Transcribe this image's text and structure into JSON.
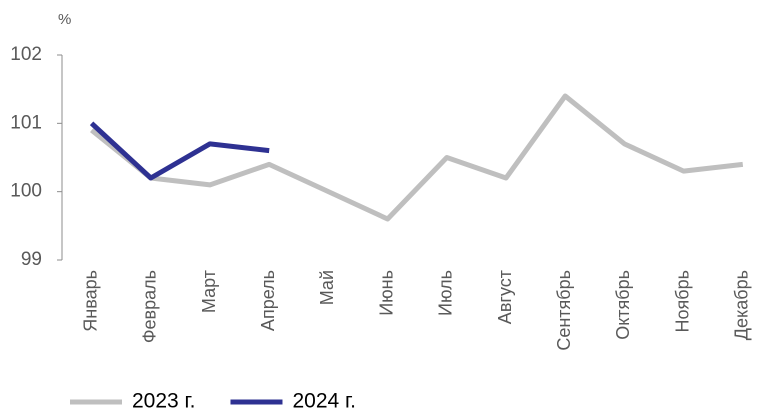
{
  "chart_data": {
    "type": "line",
    "y_unit": "%",
    "categories": [
      "Январь",
      "Февраль",
      "Март",
      "Апрель",
      "Май",
      "Июнь",
      "Июль",
      "Август",
      "Сентябрь",
      "Октябрь",
      "Ноябрь",
      "Декабрь"
    ],
    "series": [
      {
        "name": "2023 г.",
        "color": "#bfbfbf",
        "values": [
          100.9,
          100.2,
          100.1,
          100.4,
          100.0,
          99.6,
          100.5,
          100.2,
          101.4,
          100.7,
          100.3,
          100.4
        ]
      },
      {
        "name": "2024 г.",
        "color": "#2e3192",
        "values": [
          101.0,
          100.2,
          100.7,
          100.6,
          null,
          null,
          null,
          null,
          null,
          null,
          null,
          null
        ]
      }
    ],
    "ylim": [
      99,
      102
    ],
    "yticks": [
      99,
      100,
      101,
      102
    ],
    "grid": false,
    "legend": "bottom-left"
  }
}
